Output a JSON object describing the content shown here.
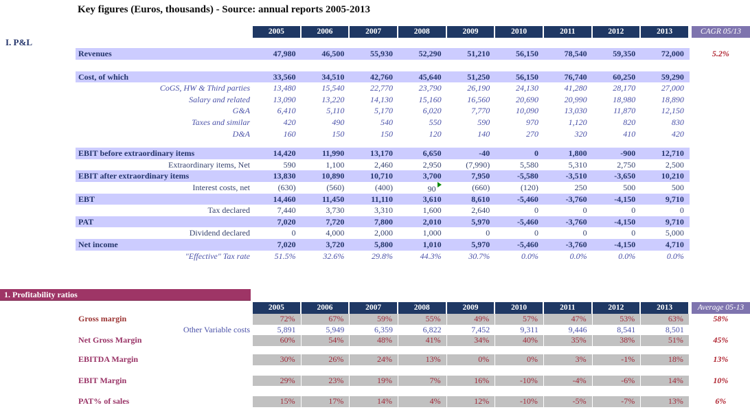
{
  "title": "Key figures (Euros, thousands) - Source: annual reports 2005-2013",
  "colors": {
    "header_bg": "#1F3864",
    "row_highlight": "#CCCCFF",
    "summary_header_bg": "#7E74AE",
    "summary_text_red": "#AF2430",
    "ratio_cell_bg": "#C1C1C1",
    "ratio_text": "#A12C3B",
    "banner_bg": "#9E3566",
    "navy_text": "#24356B",
    "blue_italic_text": "#4A51A8",
    "comment_flag_green": "#0B8A0B"
  },
  "section1": {
    "label": "I. P&L",
    "years": [
      "2005",
      "2006",
      "2007",
      "2008",
      "2009",
      "2010",
      "2011",
      "2012",
      "2013"
    ],
    "last_col": "CAGR 05/13",
    "rows": [
      {
        "type": "spacer",
        "h": 15
      },
      {
        "type": "highlight",
        "label": "Revenues",
        "values": [
          "47,980",
          "46,500",
          "55,930",
          "52,290",
          "51,210",
          "56,150",
          "78,540",
          "59,350",
          "72,000"
        ],
        "extra": "5.2%"
      },
      {
        "type": "spacer",
        "h": 17
      },
      {
        "type": "highlight",
        "label": "Cost, of which",
        "values": [
          "33,560",
          "34,510",
          "42,760",
          "45,640",
          "51,250",
          "56,150",
          "76,740",
          "60,250",
          "59,290"
        ],
        "extra": ""
      },
      {
        "type": "subitalic",
        "label": "CoGS, HW & Third parties",
        "values": [
          "13,480",
          "15,540",
          "22,770",
          "23,790",
          "26,190",
          "24,130",
          "41,280",
          "28,170",
          "27,000"
        ],
        "extra": ""
      },
      {
        "type": "subitalic",
        "label": "Salary and related",
        "values": [
          "13,090",
          "13,220",
          "14,130",
          "15,160",
          "16,560",
          "20,690",
          "20,990",
          "18,980",
          "18,890"
        ],
        "extra": ""
      },
      {
        "type": "subitalic",
        "label": "G&A",
        "values": [
          "6,410",
          "5,110",
          "5,170",
          "6,020",
          "7,770",
          "10,090",
          "13,030",
          "11,870",
          "12,150"
        ],
        "extra": ""
      },
      {
        "type": "subitalic",
        "label": "Taxes and similar",
        "values": [
          "420",
          "490",
          "540",
          "550",
          "590",
          "970",
          "1,120",
          "820",
          "830"
        ],
        "extra": ""
      },
      {
        "type": "subitalic",
        "label": "D&A",
        "values": [
          "160",
          "150",
          "150",
          "120",
          "140",
          "270",
          "320",
          "410",
          "420"
        ],
        "extra": ""
      },
      {
        "type": "spacer",
        "h": 12
      },
      {
        "type": "highlight",
        "label": "EBIT before extraordinary items",
        "values": [
          "14,420",
          "11,990",
          "13,170",
          "6,650",
          "-40",
          "0",
          "1,800",
          "-900",
          "12,710"
        ],
        "extra": ""
      },
      {
        "type": "subplain",
        "label": "Extraordinary items, Net",
        "values": [
          "590",
          "1,100",
          "2,460",
          "2,950",
          "(7,990)",
          "5,580",
          "5,310",
          "2,750",
          "2,500"
        ],
        "extra": ""
      },
      {
        "type": "highlight",
        "label": "EBIT after extraordinary items",
        "values": [
          "13,830",
          "10,890",
          "10,710",
          "3,700",
          "7,950",
          "-5,580",
          "-3,510",
          "-3,650",
          "10,210"
        ],
        "extra": ""
      },
      {
        "type": "subplain",
        "label": "Interest costs, net",
        "values": [
          "(630)",
          "(560)",
          "(400)",
          "90",
          "(660)",
          "(120)",
          "250",
          "500",
          "500"
        ],
        "extra": "",
        "flag": 3
      },
      {
        "type": "highlight",
        "label": "EBT",
        "values": [
          "14,460",
          "11,450",
          "11,110",
          "3,610",
          "8,610",
          "-5,460",
          "-3,760",
          "-4,150",
          "9,710"
        ],
        "extra": ""
      },
      {
        "type": "subplain",
        "label": "Tax declared",
        "values": [
          "7,440",
          "3,730",
          "3,310",
          "1,600",
          "2,640",
          "0",
          "0",
          "0",
          "0"
        ],
        "extra": ""
      },
      {
        "type": "highlight",
        "label": "PAT",
        "values": [
          "7,020",
          "7,720",
          "7,800",
          "2,010",
          "5,970",
          "-5,460",
          "-3,760",
          "-4,150",
          "9,710"
        ],
        "extra": ""
      },
      {
        "type": "subplain",
        "label": "Dividend declared",
        "values": [
          "0",
          "4,000",
          "2,000",
          "1,000",
          "0",
          "0",
          "0",
          "0",
          "5,000"
        ],
        "extra": ""
      },
      {
        "type": "highlight",
        "label": "Net income",
        "values": [
          "7,020",
          "3,720",
          "5,800",
          "1,010",
          "5,970",
          "-5,460",
          "-3,760",
          "-4,150",
          "4,710"
        ],
        "extra": ""
      },
      {
        "type": "subitalic",
        "label": "\"Effective\" Tax rate",
        "values": [
          "51.5%",
          "32.6%",
          "29.8%",
          "44.3%",
          "30.7%",
          "0.0%",
          "0.0%",
          "0.0%",
          "0.0%"
        ],
        "extra": ""
      }
    ]
  },
  "section2": {
    "banner": "1. Profitability ratios",
    "years": [
      "2005",
      "2006",
      "2007",
      "2008",
      "2009",
      "2010",
      "2011",
      "2012",
      "2013"
    ],
    "last_col": "Average 05-13",
    "rows": [
      {
        "type": "ratio",
        "label": "Gross margin",
        "label_color": "red",
        "values": [
          "72%",
          "67%",
          "59%",
          "55%",
          "49%",
          "57%",
          "47%",
          "53%",
          "63%"
        ],
        "extra": "58%"
      },
      {
        "type": "plain",
        "label": "Other Variable costs",
        "values": [
          "5,891",
          "5,949",
          "6,359",
          "6,822",
          "7,452",
          "9,311",
          "9,446",
          "8,541",
          "8,501"
        ],
        "extra": ""
      },
      {
        "type": "ratio",
        "label": "Net Gross Margin",
        "label_color": "plum",
        "values": [
          "60%",
          "54%",
          "48%",
          "41%",
          "34%",
          "40%",
          "35%",
          "38%",
          "51%"
        ],
        "extra": "45%"
      },
      {
        "type": "spacer",
        "h": 12
      },
      {
        "type": "ratio",
        "label": "EBITDA Margin",
        "label_color": "plum",
        "values": [
          "30%",
          "26%",
          "24%",
          "13%",
          "0%",
          "0%",
          "3%",
          "-1%",
          "18%"
        ],
        "extra": "13%"
      },
      {
        "type": "spacer",
        "h": 15
      },
      {
        "type": "ratio",
        "label": "EBIT Margin",
        "label_color": "plum",
        "values": [
          "29%",
          "23%",
          "19%",
          "7%",
          "16%",
          "-10%",
          "-4%",
          "-6%",
          "14%"
        ],
        "extra": "10%"
      },
      {
        "type": "spacer",
        "h": 15
      },
      {
        "type": "ratio",
        "label": "PAT% of sales",
        "label_color": "plum",
        "values": [
          "15%",
          "17%",
          "14%",
          "4%",
          "12%",
          "-10%",
          "-5%",
          "-7%",
          "13%"
        ],
        "extra": "6%"
      }
    ]
  }
}
